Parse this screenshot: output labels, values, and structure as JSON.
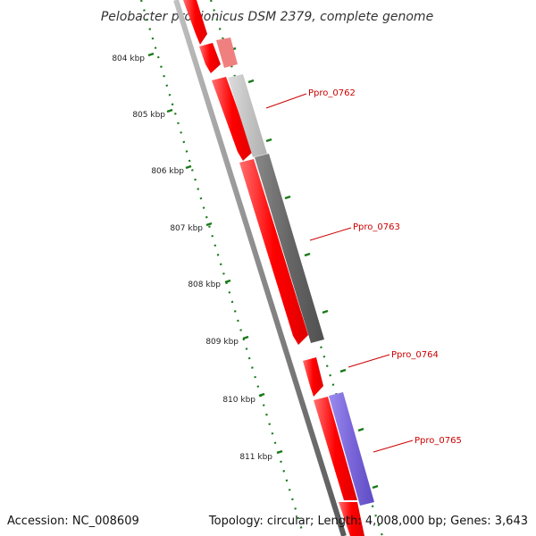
{
  "title": "Pelobacter propionicus DSM 2379, complete genome",
  "footer": {
    "accession": "Accession: NC_008609",
    "summary": "Topology: circular; Length: 4,008,000 bp; Genes: 3,643"
  },
  "colors": {
    "background": "#ffffff",
    "backbone": "#808080",
    "forward_cds": "#ff0000",
    "reverse_cds": "#ff0000",
    "gene_label": "#cc0000",
    "tick": "#1a7a1a",
    "gray_feature": "#666666",
    "light_gray_feature": "#c4c4c4",
    "purple_feature": "#7a66d9"
  },
  "ruler_ticks": [
    {
      "label": "804 kbp"
    },
    {
      "label": "805 kbp"
    },
    {
      "label": "806 kbp"
    },
    {
      "label": "807 kbp"
    },
    {
      "label": "808 kbp"
    },
    {
      "label": "809 kbp"
    },
    {
      "label": "810 kbp"
    },
    {
      "label": "811 kbp"
    }
  ],
  "genes": [
    {
      "label": "Ppro_0762"
    },
    {
      "label": "Ppro_0763"
    },
    {
      "label": "Ppro_0764"
    },
    {
      "label": "Ppro_0765"
    }
  ],
  "features": [
    {
      "kind": "forward-cds",
      "color": "#ff0000"
    },
    {
      "kind": "forward-cds",
      "color": "#ff0000"
    },
    {
      "kind": "forward-cds",
      "color": "#ff0000"
    },
    {
      "kind": "forward-cds",
      "color": "#ff0000"
    },
    {
      "kind": "forward-cds",
      "color": "#ff0000"
    },
    {
      "kind": "forward-cds",
      "color": "#ff0000"
    },
    {
      "kind": "forward-cds",
      "color": "#ff0000"
    },
    {
      "kind": "forward-cds",
      "color": "#f08080"
    },
    {
      "kind": "shaded-region",
      "color": "#c4c4c4"
    },
    {
      "kind": "shaded-region",
      "color": "#666666"
    },
    {
      "kind": "shaded-region",
      "color": "#7a66d9"
    }
  ]
}
